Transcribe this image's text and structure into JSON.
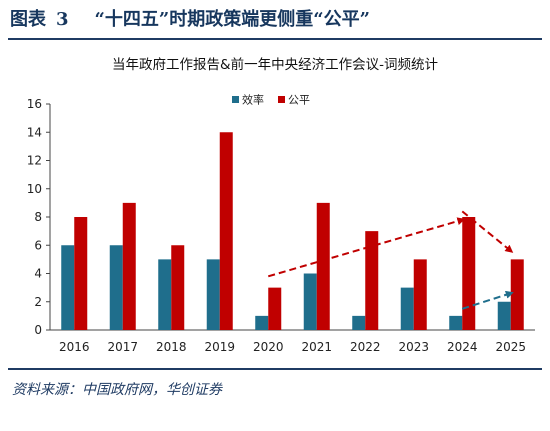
{
  "figure": {
    "label": "图表",
    "number": "3",
    "title": "“十四五”时期政策端更侧重“公平”",
    "source": "资料来源：中国政府网，华创证券"
  },
  "colors": {
    "efficiency": "#1f6e8c",
    "fairness": "#c00000",
    "frame": "#1f3b63"
  },
  "chart_data": {
    "type": "bar",
    "title": "当年政府工作报告&前一年中央经济工作会议-词频统计",
    "xlabel": "",
    "ylabel": "",
    "categories": [
      "2016",
      "2017",
      "2018",
      "2019",
      "2020",
      "2021",
      "2022",
      "2023",
      "2024",
      "2025"
    ],
    "series": [
      {
        "name": "效率",
        "values": [
          6,
          6,
          5,
          5,
          1,
          4,
          1,
          3,
          1,
          2
        ]
      },
      {
        "name": "公平",
        "values": [
          8,
          9,
          6,
          14,
          3,
          9,
          7,
          5,
          8,
          5
        ]
      }
    ],
    "ylim": [
      0,
      16
    ],
    "yticks": [
      0,
      2,
      4,
      6,
      8,
      10,
      12,
      14,
      16
    ],
    "grid": false,
    "legend": "top-center",
    "annotations": [
      {
        "type": "trend-arrow",
        "color": "fairness",
        "from": [
          "2020",
          3.8
        ],
        "to": [
          "2024",
          7.8
        ]
      },
      {
        "type": "trend-arrow",
        "color": "fairness",
        "from": [
          "2024",
          8.4
        ],
        "to": [
          "2025",
          5.6
        ]
      },
      {
        "type": "trend-arrow",
        "color": "efficiency",
        "from": [
          "2024",
          1.5
        ],
        "to": [
          "2025",
          2.6
        ]
      }
    ]
  }
}
